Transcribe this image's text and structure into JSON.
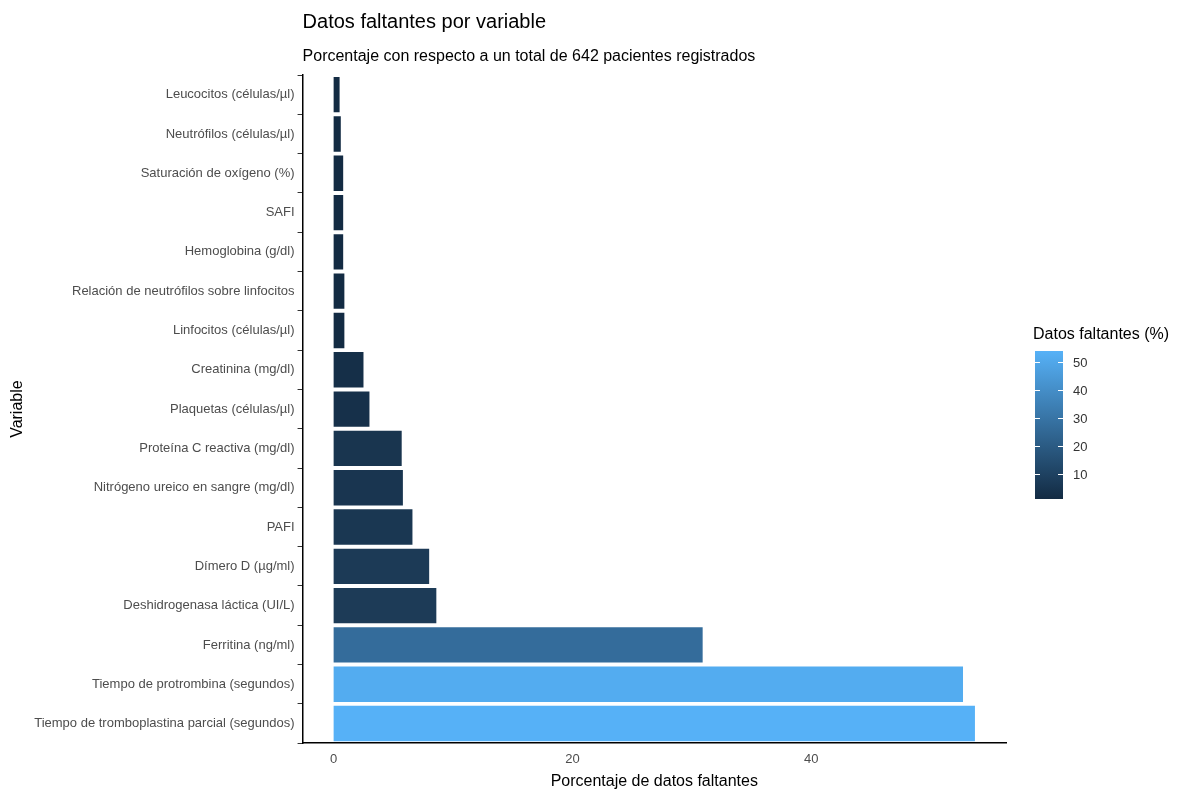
{
  "chart_data": {
    "type": "bar",
    "orientation": "horizontal",
    "title": "Datos faltantes por variable",
    "subtitle": "Porcentaje con respecto a un total de 642 pacientes registrados",
    "xlabel": "Porcentaje de datos faltantes",
    "ylabel": "Variable",
    "clabel": "Datos faltantes (%)",
    "categories": [
      "Leucocitos (células/µl)",
      "Neutrófilos (células/µl)",
      "Saturación de oxígeno (%)",
      "SAFI",
      "Hemoglobina (g/dl)",
      "Relación de neutrófilos sobre linfocitos",
      "Linfocitos (células/µl)",
      "Creatinina (mg/dl)",
      "Plaquetas (células/µl)",
      "Proteína C reactiva (mg/dl)",
      "Nitrógeno ureico en sangre (mg/dl)",
      "PAFI",
      "Dímero D (µg/ml)",
      "Deshidrogenasa láctica (UI/L)",
      "Ferritina (ng/ml)",
      "Tiempo de protrombina (segundos)",
      "Tiempo de tromboplastina parcial (segundos)"
    ],
    "values": [
      0.5,
      0.6,
      0.8,
      0.8,
      0.8,
      0.9,
      0.9,
      2.5,
      3.0,
      5.7,
      5.8,
      6.6,
      8.0,
      8.6,
      30.9,
      52.7,
      53.7
    ],
    "colors": [
      "#132b43",
      "#132b43",
      "#132b43",
      "#132b43",
      "#132b43",
      "#132b43",
      "#132b43",
      "#152f48",
      "#16304a",
      "#19354f",
      "#193550",
      "#1a3752",
      "#1c3a56",
      "#1d3b57",
      "#346c9b",
      "#53acf0",
      "#56b1f7"
    ],
    "xlim": [
      -2.6,
      56.3
    ],
    "xticks": [
      0,
      20,
      40
    ],
    "clim": [
      1,
      54
    ],
    "cticks": [
      10,
      20,
      30,
      40,
      50
    ],
    "grid": false
  }
}
